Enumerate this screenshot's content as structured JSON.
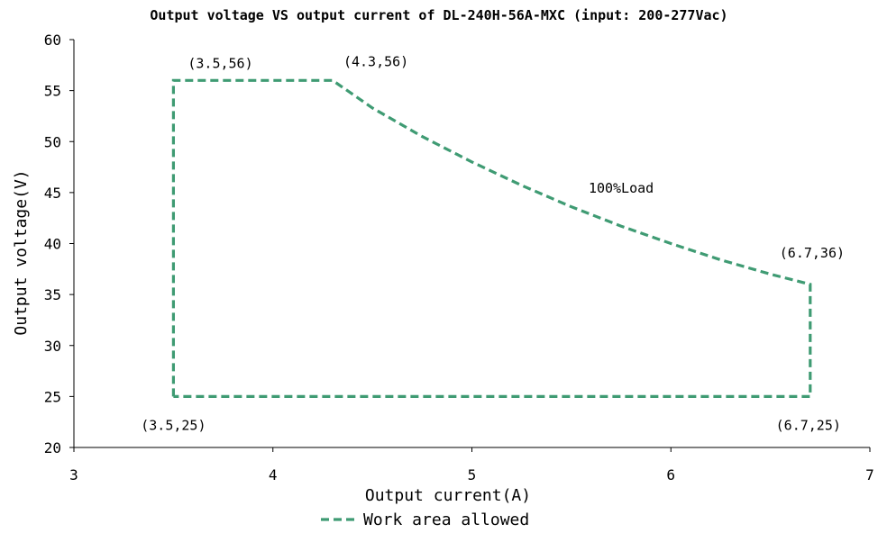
{
  "chart_data": {
    "type": "line",
    "title": "Output voltage VS output current of DL-240H-56A-MXC (input: 200-277Vac)",
    "xlabel": "Output current(A)",
    "ylabel": "Output voltage(V)",
    "xlim": [
      3,
      7
    ],
    "ylim": [
      20,
      60
    ],
    "xticks": [
      3,
      4,
      5,
      6,
      7
    ],
    "yticks": [
      20,
      25,
      30,
      35,
      40,
      45,
      50,
      55,
      60
    ],
    "grid": false,
    "legend_position": "bottom",
    "series": [
      {
        "name": "Work area allowed",
        "color": "#3f9b73",
        "style": "dashed",
        "points": [
          {
            "x": 3.5,
            "y": 25
          },
          {
            "x": 3.5,
            "y": 56
          },
          {
            "x": 4.3,
            "y": 56
          },
          {
            "x": 4.5,
            "y": 53.3
          },
          {
            "x": 4.75,
            "y": 50.5
          },
          {
            "x": 5.0,
            "y": 48.0
          },
          {
            "x": 5.25,
            "y": 45.7
          },
          {
            "x": 5.5,
            "y": 43.6
          },
          {
            "x": 5.75,
            "y": 41.7
          },
          {
            "x": 6.0,
            "y": 40.0
          },
          {
            "x": 6.25,
            "y": 38.4
          },
          {
            "x": 6.5,
            "y": 37.0
          },
          {
            "x": 6.7,
            "y": 36
          },
          {
            "x": 6.7,
            "y": 25
          },
          {
            "x": 3.5,
            "y": 25
          }
        ]
      }
    ],
    "annotations": [
      {
        "text": "(3.5,56)",
        "x": 3.5,
        "y": 56
      },
      {
        "text": "(4.3,56)",
        "x": 4.3,
        "y": 56
      },
      {
        "text": "100%Load",
        "x": 5.75,
        "y": 45
      },
      {
        "text": "(6.7,36)",
        "x": 6.7,
        "y": 36
      },
      {
        "text": "(3.5,25)",
        "x": 3.5,
        "y": 25
      },
      {
        "text": "(6.7,25)",
        "x": 6.7,
        "y": 25
      }
    ]
  }
}
